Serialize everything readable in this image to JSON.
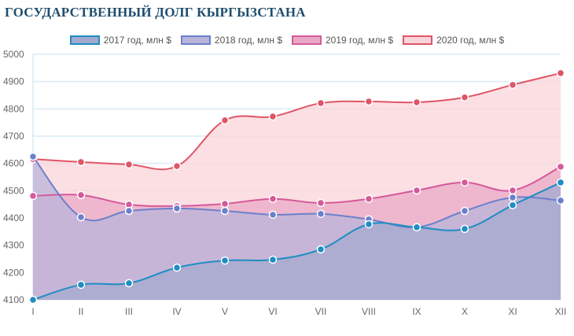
{
  "title": "ГОСУДАРСТВЕННЫЙ ДОЛГ КЫРГЫЗСТАНА",
  "chart_data": {
    "type": "area",
    "title": "ГОСУДАРСТВЕННЫЙ ДОЛГ КЫРГЫЗСТАНА",
    "xlabel": "",
    "ylabel": "",
    "categories": [
      "I",
      "II",
      "III",
      "IV",
      "V",
      "VI",
      "VII",
      "VIII",
      "IX",
      "X",
      "XI",
      "XII"
    ],
    "ylim": [
      4100,
      5000
    ],
    "yticks": [
      4100,
      4200,
      4300,
      4400,
      4500,
      4600,
      4700,
      4800,
      4900,
      5000
    ],
    "grid": true,
    "legend_position": "top-center",
    "series": [
      {
        "name": "2020 год, млн $",
        "line": "#e05566",
        "fill": "#f9d4da",
        "values": [
          4616,
          4605,
          4596,
          4590,
          4758,
          4772,
          4821,
          4827,
          4824,
          4842,
          4888,
          4931
        ]
      },
      {
        "name": "2019 год, млн $",
        "line": "#d6599b",
        "fill": "#e9a9c6",
        "values": [
          4481,
          4484,
          4449,
          4444,
          4452,
          4470,
          4455,
          4470,
          4501,
          4530,
          4501,
          4588
        ]
      },
      {
        "name": "2018 год, млн $",
        "line": "#6b80cc",
        "fill": "#b9b4d9",
        "values": [
          4625,
          4403,
          4426,
          4435,
          4426,
          4412,
          4415,
          4395,
          4366,
          4426,
          4475,
          4464
        ]
      },
      {
        "name": "2017 год, млн $",
        "line": "#1d8ec2",
        "fill": "#a4a9cf",
        "values": [
          4100,
          4155,
          4161,
          4218,
          4244,
          4247,
          4285,
          4377,
          4366,
          4360,
          4447,
          4530
        ]
      }
    ],
    "legend_order": [
      3,
      2,
      1,
      0
    ]
  }
}
